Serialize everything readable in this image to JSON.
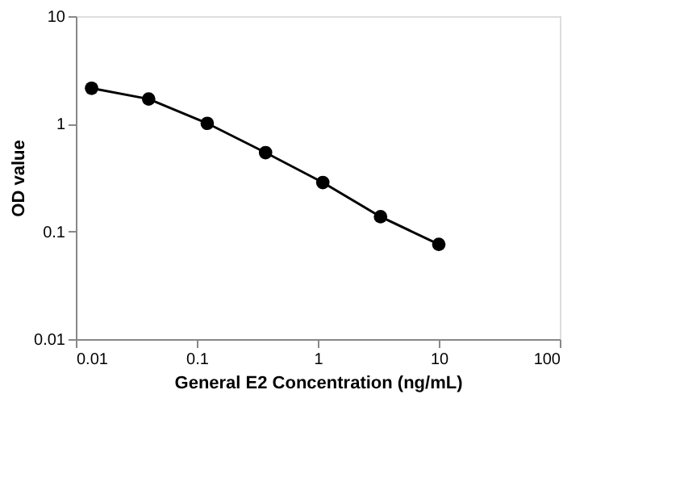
{
  "chart_data": {
    "type": "line",
    "xlabel": "General E2 Concentration (ng/mL)",
    "ylabel": "OD value",
    "x": [
      0.0135,
      0.04,
      0.122,
      0.37,
      1.1,
      3.3,
      10
    ],
    "series": [
      {
        "color": "#000000",
        "values": [
          2.14,
          1.7,
          1.01,
          0.54,
          0.285,
          0.137,
          0.076
        ]
      }
    ],
    "log": "xy",
    "xlim": [
      0.01,
      100
    ],
    "ylim": [
      0.01,
      10
    ],
    "xticks": [
      0.01,
      0.1,
      1,
      10,
      100
    ],
    "yticks": [
      0.01,
      0.1,
      1,
      10
    ],
    "grid": false,
    "marker": "circle",
    "line_style": "solid"
  }
}
